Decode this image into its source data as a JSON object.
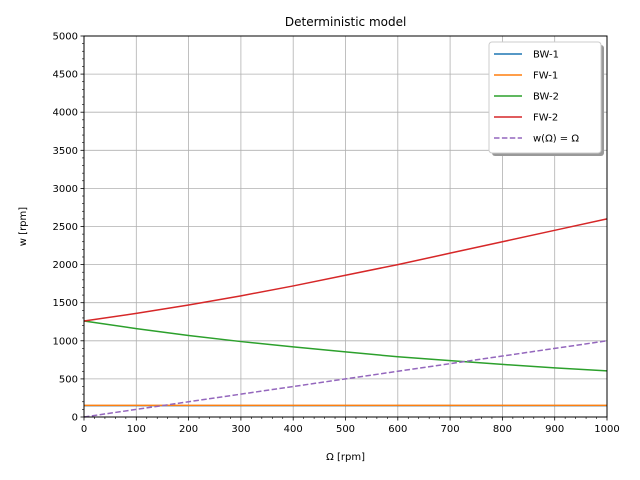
{
  "chart_data": {
    "type": "line",
    "title": "Deterministic model",
    "xlabel": "Ω [rpm]",
    "ylabel": "w [rpm]",
    "xlim": [
      0,
      1000
    ],
    "ylim": [
      0,
      5000
    ],
    "xticks": [
      0,
      100,
      200,
      300,
      400,
      500,
      600,
      700,
      800,
      900,
      1000
    ],
    "yticks": [
      0,
      500,
      1000,
      1500,
      2000,
      2500,
      3000,
      3500,
      4000,
      4500,
      5000
    ],
    "grid": true,
    "legend_position": "top-right",
    "x": [
      0,
      100,
      200,
      300,
      400,
      500,
      600,
      700,
      800,
      900,
      1000
    ],
    "series": [
      {
        "name": "BW-1",
        "color": "#1f77b4",
        "dash": "solid",
        "values": [
          150,
          150,
          150,
          150,
          150,
          150,
          150,
          150,
          150,
          150,
          150
        ]
      },
      {
        "name": "FW-1",
        "color": "#ff7f0e",
        "dash": "solid",
        "values": [
          152,
          152,
          152,
          152,
          152,
          152,
          152,
          152,
          152,
          152,
          152
        ]
      },
      {
        "name": "BW-2",
        "color": "#2ca02c",
        "dash": "solid",
        "values": [
          1260,
          1160,
          1070,
          990,
          920,
          855,
          790,
          740,
          690,
          645,
          605
        ]
      },
      {
        "name": "FW-2",
        "color": "#d62728",
        "dash": "solid",
        "values": [
          1260,
          1360,
          1470,
          1590,
          1720,
          1860,
          2000,
          2150,
          2300,
          2450,
          2600
        ]
      },
      {
        "name": "w(Ω) = Ω",
        "color": "#9467bd",
        "dash": "dashed",
        "values": [
          0,
          100,
          200,
          300,
          400,
          500,
          600,
          700,
          800,
          900,
          1000
        ]
      }
    ]
  }
}
